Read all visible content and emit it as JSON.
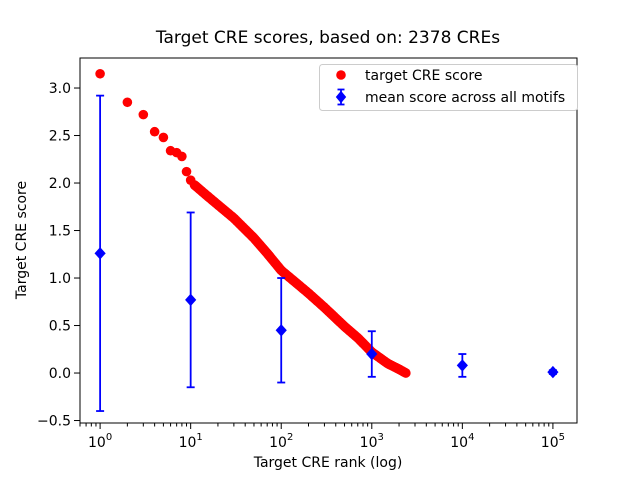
{
  "chart_data": {
    "type": "scatter",
    "title": "Target CRE scores, based on: 2378 CREs",
    "xlabel": "Target CRE rank (log)",
    "ylabel": "Target CRE score",
    "xscale": "log",
    "xlim_log10": [
      -0.222,
      5.266
    ],
    "ylim": [
      -0.526,
      3.316
    ],
    "grid": false,
    "background_color": "#ffffff",
    "xticks": [
      1,
      10,
      100,
      1000,
      10000,
      100000
    ],
    "xtick_exponents": [
      0,
      1,
      2,
      3,
      4,
      5
    ],
    "xtick_labels": [
      "10^0",
      "10^1",
      "10^2",
      "10^3",
      "10^4",
      "10^5"
    ],
    "yticks": [
      -0.5,
      0.0,
      0.5,
      1.0,
      1.5,
      2.0,
      2.5,
      3.0
    ],
    "ytick_labels": [
      "−0.5",
      "0.0",
      "0.5",
      "1.0",
      "1.5",
      "2.0",
      "2.5",
      "3.0"
    ],
    "legend": {
      "position": "upper right",
      "entries": [
        "target CRE score",
        "mean score across all motifs"
      ]
    },
    "series": [
      {
        "name": "target CRE score",
        "type": "scatter",
        "marker": "circle",
        "color": "#ff0000",
        "total_points": 2378,
        "anchor_points": [
          [
            1,
            3.15
          ],
          [
            2,
            2.85
          ],
          [
            3,
            2.72
          ],
          [
            4,
            2.54
          ],
          [
            5,
            2.48
          ],
          [
            6,
            2.34
          ],
          [
            7,
            2.32
          ],
          [
            8,
            2.28
          ],
          [
            9,
            2.12
          ],
          [
            10,
            2.03
          ],
          [
            11,
            1.98
          ],
          [
            15,
            1.87
          ],
          [
            20,
            1.77
          ],
          [
            30,
            1.63
          ],
          [
            50,
            1.42
          ],
          [
            70,
            1.26
          ],
          [
            100,
            1.08
          ],
          [
            150,
            0.94
          ],
          [
            200,
            0.84
          ],
          [
            300,
            0.69
          ],
          [
            500,
            0.49
          ],
          [
            700,
            0.37
          ],
          [
            1000,
            0.22
          ],
          [
            1500,
            0.1
          ],
          [
            2000,
            0.04
          ],
          [
            2378,
            0.0
          ]
        ]
      },
      {
        "name": "mean score across all motifs",
        "type": "errorbar",
        "marker": "diamond",
        "color": "#0000ff",
        "x": [
          1,
          10,
          100,
          1000,
          10000,
          100000
        ],
        "y": [
          1.26,
          0.77,
          0.45,
          0.2,
          0.08,
          0.01
        ],
        "yerr": [
          1.66,
          0.92,
          0.55,
          0.24,
          0.12,
          0.02
        ]
      }
    ]
  }
}
